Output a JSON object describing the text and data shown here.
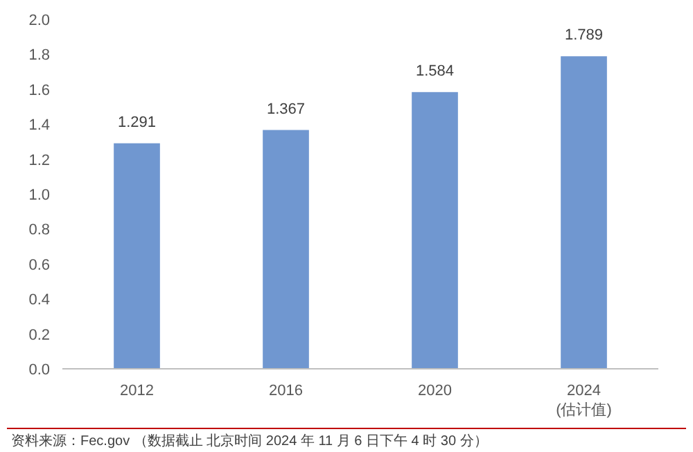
{
  "chart_data": {
    "type": "bar",
    "categories": [
      "2012",
      "2016",
      "2020",
      "2024\n(估计值)"
    ],
    "values": [
      1.291,
      1.367,
      1.584,
      1.789
    ],
    "color": "#7097d0",
    "ylim": [
      0,
      2.0
    ],
    "yticks": [
      {
        "value": 0,
        "label": "0.0"
      },
      {
        "value": 0.2,
        "label": "0.2"
      },
      {
        "value": 0.4,
        "label": "0.4"
      },
      {
        "value": 0.6,
        "label": "0.6"
      },
      {
        "value": 0.8,
        "label": "0.8"
      },
      {
        "value": 1.0,
        "label": "1.0"
      },
      {
        "value": 1.2,
        "label": "1.2"
      },
      {
        "value": 1.4,
        "label": "1.4"
      },
      {
        "value": 1.6,
        "label": "1.6"
      },
      {
        "value": 1.8,
        "label": "1.8"
      },
      {
        "value": 2.0,
        "label": "2.0"
      }
    ],
    "data_labels": true,
    "annotations": [
      "资料来源：Fec.gov （数据截止 北京时间 2024 年 11 月 6 日下午 4 时 30 分）"
    ]
  }
}
